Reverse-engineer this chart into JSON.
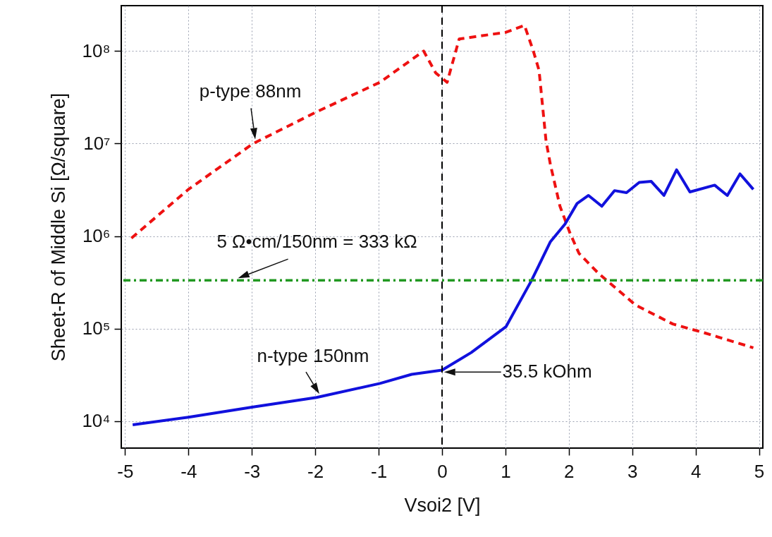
{
  "chart_data": {
    "type": "line",
    "xlabel": "Vsoi2 [V]",
    "ylabel": "Sheet-R of Middle Si [Ω/square]",
    "log": "y",
    "grid": true,
    "xlim": [
      -5.06,
      5.06
    ],
    "xticks": [
      -5,
      -4,
      -3,
      -2,
      -1,
      0,
      1,
      2,
      3,
      4,
      5
    ],
    "ylim": [
      5100,
      310000000
    ],
    "yticks": [
      {
        "value": 10000,
        "label": "10⁴"
      },
      {
        "value": 100000,
        "label": "10⁵"
      },
      {
        "value": 1000000,
        "label": "10⁶"
      },
      {
        "value": 10000000,
        "label": "10⁷"
      },
      {
        "value": 100000000,
        "label": "10⁸"
      }
    ],
    "series": [
      {
        "name": "p-type 88nm",
        "color": "#ee1111",
        "line_style": "dashed",
        "x": [
          -4.9,
          -4,
          -2.98,
          -1.98,
          -0.98,
          -0.29,
          -0.1,
          0.08,
          0.27,
          1.01,
          1.3,
          1.44,
          1.53,
          1.64,
          1.71,
          1.86,
          2.02,
          2.16,
          2.46,
          3.05,
          3.64,
          4.16,
          4.91
        ],
        "values": [
          950000,
          3200000,
          10000000,
          22000000,
          46000000,
          100000000,
          58000000,
          46000000,
          135000000,
          160000000,
          190000000,
          100000000,
          62000000,
          10700000,
          5900000,
          2100000,
          1070000,
          650000,
          400000,
          180000,
          112000,
          89000,
          62000
        ]
      },
      {
        "name": "n-type 150nm",
        "color": "#1111dd",
        "line_style": "solid",
        "x": [
          -4.88,
          -4,
          -2.98,
          -1.98,
          -0.98,
          -0.48,
          0,
          0.46,
          1.01,
          1.41,
          1.71,
          1.94,
          2.13,
          2.31,
          2.52,
          2.72,
          2.91,
          3.11,
          3.3,
          3.5,
          3.7,
          3.91,
          4.3,
          4.5,
          4.7,
          4.91
        ],
        "values": [
          9100,
          11000,
          14200,
          18000,
          25500,
          32000,
          35500,
          55000,
          105000,
          330000,
          870000,
          1350000,
          2250000,
          2750000,
          2100000,
          3100000,
          2950000,
          3800000,
          3900000,
          2750000,
          5200000,
          3000000,
          3550000,
          2750000,
          4700000,
          3200000
        ]
      }
    ],
    "ref_lines": [
      {
        "axis": "y",
        "value": 333000,
        "label": "5 Ω•cm/150nm = 333 kΩ",
        "color": "#229922",
        "line_style": "dashdot"
      },
      {
        "axis": "x",
        "value": 0,
        "color": "#000000",
        "line_style": "dashed"
      }
    ],
    "annotations": [
      "35.5 kOhm"
    ]
  }
}
